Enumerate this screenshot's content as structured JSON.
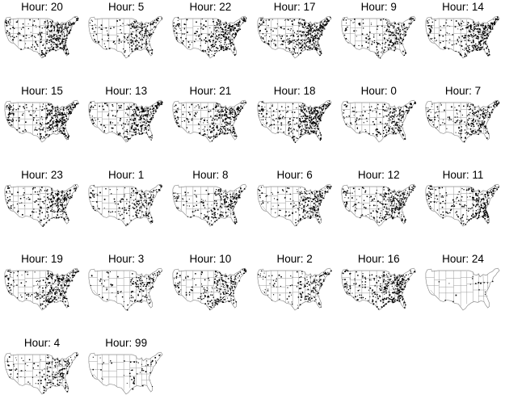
{
  "figure": {
    "title_prefix": "Hour: ",
    "panels": [
      {
        "label": "Hour: 20",
        "hour": 20,
        "density": 0.85
      },
      {
        "label": "Hour: 5",
        "hour": 5,
        "density": 0.55
      },
      {
        "label": "Hour: 22",
        "hour": 22,
        "density": 0.85
      },
      {
        "label": "Hour: 17",
        "hour": 17,
        "density": 0.95
      },
      {
        "label": "Hour: 9",
        "hour": 9,
        "density": 0.55
      },
      {
        "label": "Hour: 14",
        "hour": 14,
        "density": 0.9
      },
      {
        "label": "Hour: 15",
        "hour": 15,
        "density": 0.95
      },
      {
        "label": "Hour: 13",
        "hour": 13,
        "density": 0.8
      },
      {
        "label": "Hour: 21",
        "hour": 21,
        "density": 0.8
      },
      {
        "label": "Hour: 18",
        "hour": 18,
        "density": 1.0
      },
      {
        "label": "Hour: 0",
        "hour": 0,
        "density": 0.55
      },
      {
        "label": "Hour: 7",
        "hour": 7,
        "density": 0.65
      },
      {
        "label": "Hour: 23",
        "hour": 23,
        "density": 0.7
      },
      {
        "label": "Hour: 1",
        "hour": 1,
        "density": 0.5
      },
      {
        "label": "Hour: 8",
        "hour": 8,
        "density": 0.6
      },
      {
        "label": "Hour: 6",
        "hour": 6,
        "density": 0.6
      },
      {
        "label": "Hour: 12",
        "hour": 12,
        "density": 0.75
      },
      {
        "label": "Hour: 11",
        "hour": 11,
        "density": 0.7
      },
      {
        "label": "Hour: 19",
        "hour": 19,
        "density": 0.75
      },
      {
        "label": "Hour: 3",
        "hour": 3,
        "density": 0.35
      },
      {
        "label": "Hour: 10",
        "hour": 10,
        "density": 0.6
      },
      {
        "label": "Hour: 2",
        "hour": 2,
        "density": 0.4
      },
      {
        "label": "Hour: 16",
        "hour": 16,
        "density": 0.85
      },
      {
        "label": "Hour: 24",
        "hour": 24,
        "density": 0.03
      },
      {
        "label": "Hour: 4",
        "hour": 4,
        "density": 0.45
      },
      {
        "label": "Hour: 99",
        "hour": 99,
        "density": 0.12
      }
    ],
    "colors": {
      "point": "#000000",
      "state_border": "#8c8c8c",
      "background": "#ffffff"
    }
  }
}
